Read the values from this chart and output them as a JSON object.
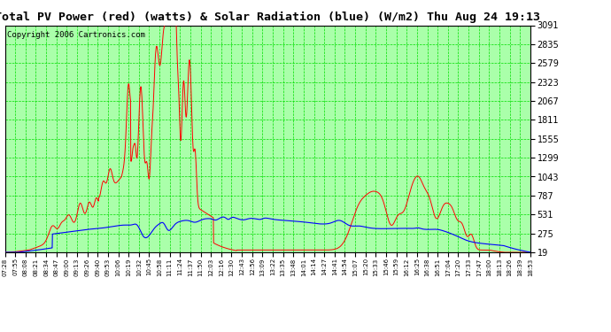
{
  "title": "Total PV Power (red) (watts) & Solar Radiation (blue) (W/m2) Thu Aug 24 19:13",
  "copyright": "Copyright 2006 Cartronics.com",
  "bg_color": "#ffffff",
  "plot_bg_color": "#aaffaa",
  "grid_color": "#00dd00",
  "yticks": [
    19.0,
    275.0,
    530.9,
    786.9,
    1042.9,
    1298.9,
    1554.8,
    1810.8,
    2066.8,
    2322.8,
    2578.7,
    2834.7,
    3090.7
  ],
  "ymin": 19.0,
  "ymax": 3090.7,
  "xtick_labels": [
    "07:28",
    "07:55",
    "08:08",
    "08:21",
    "08:34",
    "08:47",
    "09:00",
    "09:13",
    "09:26",
    "09:40",
    "09:53",
    "10:06",
    "10:19",
    "10:32",
    "10:45",
    "10:58",
    "11:11",
    "11:24",
    "11:37",
    "11:50",
    "12:03",
    "12:16",
    "12:30",
    "12:43",
    "12:56",
    "13:09",
    "13:22",
    "13:35",
    "13:48",
    "14:01",
    "14:14",
    "14:27",
    "14:41",
    "14:54",
    "15:07",
    "15:20",
    "15:33",
    "15:46",
    "15:59",
    "16:12",
    "16:25",
    "16:38",
    "16:51",
    "17:04",
    "17:20",
    "17:33",
    "17:47",
    "18:00",
    "18:13",
    "18:26",
    "18:39",
    "18:53"
  ],
  "red_line_color": "#ff0000",
  "blue_line_color": "#0000ff",
  "title_fontsize": 11,
  "copyright_fontsize": 6.5
}
